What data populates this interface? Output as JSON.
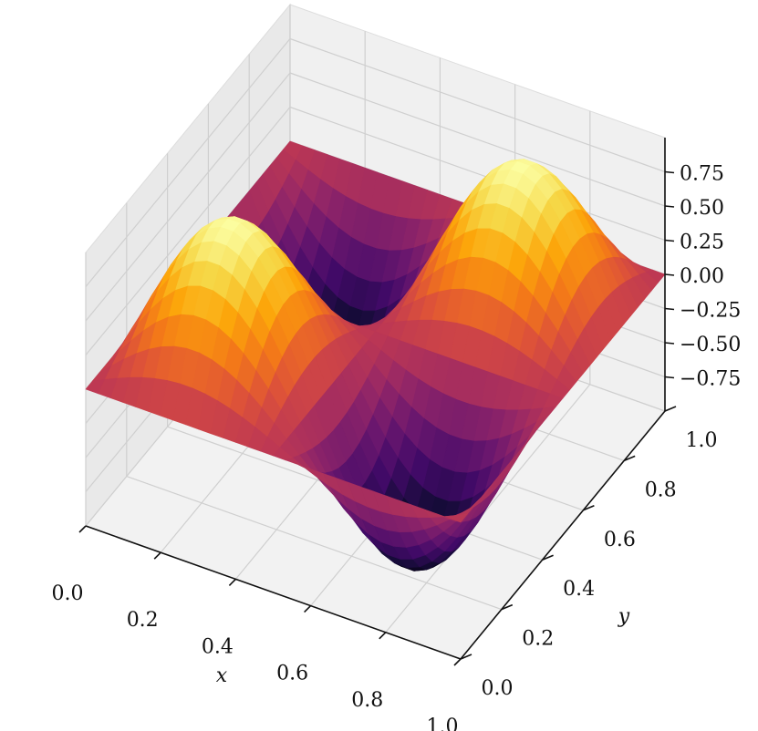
{
  "chart_data": {
    "type": "surface3d",
    "function": "sin(2*pi*x) * sin(2*pi*y)",
    "colormap": "inferno",
    "xlabel": "x",
    "ylabel": "y",
    "zlabel": "",
    "xlim": [
      0,
      1
    ],
    "ylim": [
      0,
      1
    ],
    "zlim": [
      -1,
      1
    ],
    "x_ticks": [
      "0.0",
      "0.2",
      "0.4",
      "0.6",
      "0.8",
      "1.0"
    ],
    "y_ticks": [
      "0.0",
      "0.2",
      "0.4",
      "0.6",
      "0.8",
      "1.0"
    ],
    "z_ticks": [
      "−0.75",
      "−0.50",
      "−0.25",
      "0.00",
      "0.25",
      "0.50",
      "0.75"
    ],
    "z_tick_values": [
      -0.75,
      -0.5,
      -0.25,
      0,
      0.25,
      0.5,
      0.75
    ],
    "peaks": [
      {
        "x": 0.25,
        "y": 0.25,
        "z": 1.0
      },
      {
        "x": 0.75,
        "y": 0.75,
        "z": 1.0
      }
    ],
    "troughs": [
      {
        "x": 0.25,
        "y": 0.75,
        "z": -1.0
      },
      {
        "x": 0.75,
        "y": 0.25,
        "z": -1.0
      }
    ],
    "grid": true
  }
}
